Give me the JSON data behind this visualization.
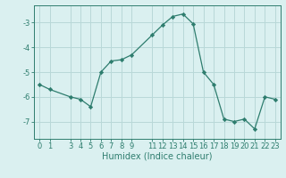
{
  "x": [
    0,
    1,
    3,
    4,
    5,
    6,
    7,
    8,
    9,
    11,
    12,
    13,
    14,
    15,
    16,
    17,
    18,
    19,
    20,
    21,
    22,
    23
  ],
  "y": [
    -5.5,
    -5.7,
    -6.0,
    -6.1,
    -6.4,
    -5.0,
    -4.55,
    -4.5,
    -4.3,
    -3.5,
    -3.1,
    -2.75,
    -2.65,
    -3.05,
    -5.0,
    -5.5,
    -6.9,
    -7.0,
    -6.9,
    -7.3,
    -6.0,
    -6.1
  ],
  "line_color": "#2e7d6e",
  "marker": "D",
  "marker_size": 2.2,
  "bg_color": "#daf0f0",
  "grid_color": "#b8d8d8",
  "xlabel": "Humidex (Indice chaleur)",
  "xlim": [
    -0.5,
    23.5
  ],
  "ylim": [
    -7.7,
    -2.3
  ],
  "yticks": [
    -7,
    -6,
    -5,
    -4,
    -3
  ],
  "xticks": [
    0,
    1,
    3,
    4,
    5,
    6,
    7,
    8,
    9,
    11,
    12,
    13,
    14,
    15,
    16,
    17,
    18,
    19,
    20,
    21,
    22,
    23
  ],
  "xlabel_fontsize": 7.0,
  "tick_fontsize": 6.0
}
